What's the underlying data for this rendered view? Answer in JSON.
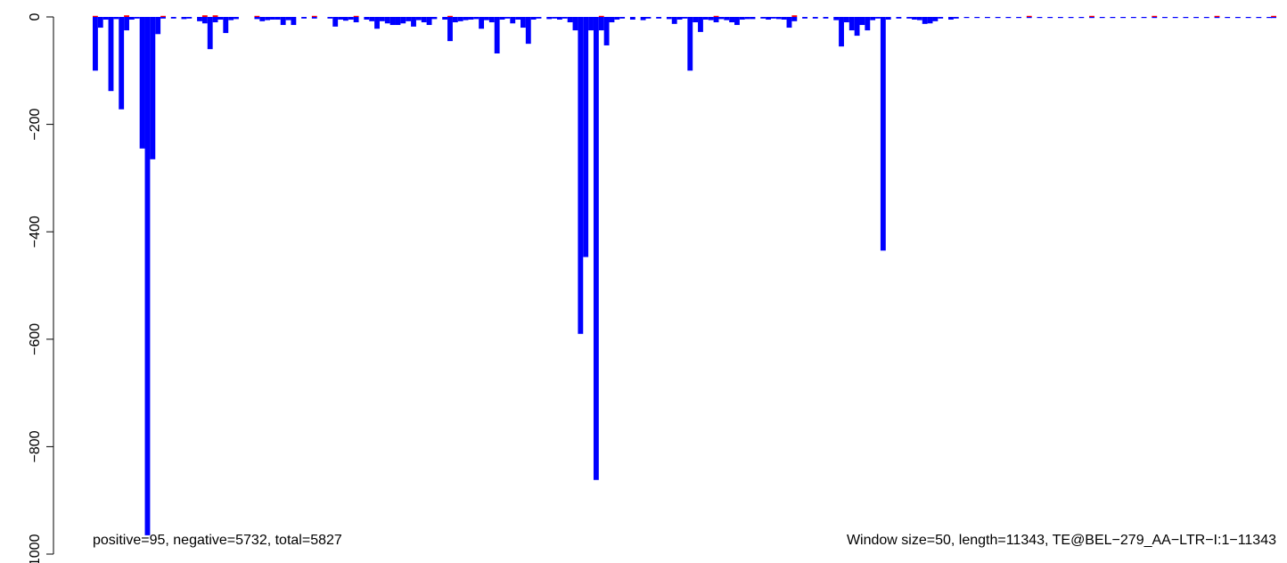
{
  "chart_data": {
    "type": "bar",
    "x_range": [
      0,
      11343
    ],
    "ylim": [
      -1000,
      0
    ],
    "y_ticks": [
      0,
      -200,
      -400,
      -600,
      -800,
      -1000
    ],
    "y_tick_labels": [
      "0",
      "−200",
      "−400",
      "−600",
      "−800",
      "−1000"
    ],
    "series": [
      {
        "color": "#0000ff",
        "points": [
          [
            25,
            -100
          ],
          [
            75,
            -20
          ],
          [
            125,
            -5
          ],
          [
            175,
            -138
          ],
          [
            225,
            -4
          ],
          [
            275,
            -172
          ],
          [
            325,
            -25
          ],
          [
            375,
            -5
          ],
          [
            425,
            -3
          ],
          [
            475,
            -245
          ],
          [
            525,
            -965
          ],
          [
            575,
            -265
          ],
          [
            625,
            -32
          ],
          [
            675,
            -3
          ],
          [
            775,
            -3
          ],
          [
            875,
            -4
          ],
          [
            925,
            -3
          ],
          [
            1025,
            -8
          ],
          [
            1075,
            -12
          ],
          [
            1125,
            -60
          ],
          [
            1175,
            -10
          ],
          [
            1225,
            -5
          ],
          [
            1275,
            -30
          ],
          [
            1325,
            -6
          ],
          [
            1375,
            -4
          ],
          [
            1575,
            -4
          ],
          [
            1625,
            -8
          ],
          [
            1675,
            -6
          ],
          [
            1725,
            -5
          ],
          [
            1775,
            -5
          ],
          [
            1825,
            -15
          ],
          [
            1875,
            -6
          ],
          [
            1925,
            -15
          ],
          [
            2025,
            -3
          ],
          [
            2125,
            -3
          ],
          [
            2275,
            -3
          ],
          [
            2325,
            -18
          ],
          [
            2375,
            -5
          ],
          [
            2425,
            -7
          ],
          [
            2475,
            -5
          ],
          [
            2525,
            -10
          ],
          [
            2625,
            -5
          ],
          [
            2675,
            -8
          ],
          [
            2725,
            -22
          ],
          [
            2775,
            -8
          ],
          [
            2825,
            -12
          ],
          [
            2875,
            -15
          ],
          [
            2925,
            -15
          ],
          [
            2975,
            -12
          ],
          [
            3025,
            -8
          ],
          [
            3075,
            -18
          ],
          [
            3125,
            -6
          ],
          [
            3175,
            -10
          ],
          [
            3225,
            -15
          ],
          [
            3275,
            -4
          ],
          [
            3375,
            -5
          ],
          [
            3425,
            -45
          ],
          [
            3475,
            -10
          ],
          [
            3525,
            -8
          ],
          [
            3575,
            -6
          ],
          [
            3625,
            -5
          ],
          [
            3675,
            -4
          ],
          [
            3725,
            -22
          ],
          [
            3775,
            -6
          ],
          [
            3825,
            -10
          ],
          [
            3875,
            -68
          ],
          [
            3925,
            -5
          ],
          [
            3975,
            -3
          ],
          [
            4025,
            -12
          ],
          [
            4075,
            -5
          ],
          [
            4125,
            -20
          ],
          [
            4175,
            -50
          ],
          [
            4225,
            -5
          ],
          [
            4275,
            -3
          ],
          [
            4375,
            -4
          ],
          [
            4425,
            -3
          ],
          [
            4475,
            -5
          ],
          [
            4525,
            -3
          ],
          [
            4575,
            -10
          ],
          [
            4625,
            -25
          ],
          [
            4675,
            -590
          ],
          [
            4725,
            -447
          ],
          [
            4775,
            -25
          ],
          [
            4825,
            -862
          ],
          [
            4875,
            -25
          ],
          [
            4925,
            -53
          ],
          [
            4975,
            -10
          ],
          [
            5025,
            -5
          ],
          [
            5075,
            -3
          ],
          [
            5175,
            -5
          ],
          [
            5275,
            -6
          ],
          [
            5325,
            -3
          ],
          [
            5425,
            -3
          ],
          [
            5525,
            -4
          ],
          [
            5575,
            -13
          ],
          [
            5625,
            -5
          ],
          [
            5675,
            -3
          ],
          [
            5725,
            -100
          ],
          [
            5775,
            -10
          ],
          [
            5825,
            -28
          ],
          [
            5875,
            -5
          ],
          [
            5925,
            -6
          ],
          [
            5975,
            -10
          ],
          [
            6025,
            -4
          ],
          [
            6075,
            -6
          ],
          [
            6125,
            -10
          ],
          [
            6175,
            -15
          ],
          [
            6225,
            -5
          ],
          [
            6275,
            -4
          ],
          [
            6325,
            -4
          ],
          [
            6425,
            -3
          ],
          [
            6475,
            -5
          ],
          [
            6525,
            -3
          ],
          [
            6575,
            -4
          ],
          [
            6625,
            -5
          ],
          [
            6675,
            -20
          ],
          [
            6725,
            -8
          ],
          [
            6825,
            -3
          ],
          [
            6925,
            -3
          ],
          [
            7025,
            -3
          ],
          [
            7125,
            -6
          ],
          [
            7175,
            -55
          ],
          [
            7225,
            -10
          ],
          [
            7275,
            -25
          ],
          [
            7325,
            -35
          ],
          [
            7375,
            -15
          ],
          [
            7425,
            -25
          ],
          [
            7475,
            -6
          ],
          [
            7525,
            -3
          ],
          [
            7575,
            -435
          ],
          [
            7625,
            -5
          ],
          [
            7725,
            -3
          ],
          [
            7825,
            -3
          ],
          [
            7875,
            -5
          ],
          [
            7925,
            -6
          ],
          [
            7975,
            -13
          ],
          [
            8025,
            -12
          ],
          [
            8075,
            -8
          ],
          [
            8125,
            -3
          ],
          [
            8225,
            -5
          ],
          [
            8275,
            -3
          ],
          [
            8375,
            -2
          ],
          [
            8475,
            -2
          ],
          [
            8575,
            -2
          ],
          [
            8675,
            -2
          ],
          [
            8775,
            -2
          ],
          [
            8875,
            -2
          ],
          [
            8975,
            -2
          ],
          [
            9075,
            -2
          ],
          [
            9175,
            -2
          ],
          [
            9275,
            -2
          ],
          [
            9375,
            -2
          ],
          [
            9475,
            -2
          ],
          [
            9575,
            -2
          ],
          [
            9675,
            -2
          ],
          [
            9775,
            -2
          ],
          [
            9875,
            -2
          ],
          [
            9975,
            -2
          ],
          [
            10075,
            -2
          ],
          [
            10175,
            -2
          ],
          [
            10275,
            -2
          ],
          [
            10375,
            -2
          ],
          [
            10475,
            -2
          ],
          [
            10575,
            -2
          ],
          [
            10675,
            -2
          ],
          [
            10775,
            -2
          ],
          [
            10875,
            -2
          ],
          [
            10975,
            -2
          ],
          [
            11075,
            -2
          ],
          [
            11175,
            -2
          ],
          [
            11275,
            -2
          ],
          [
            11318,
            -2
          ]
        ]
      },
      {
        "color": "#ff0000",
        "points": [
          [
            25,
            2
          ],
          [
            325,
            3
          ],
          [
            675,
            2
          ],
          [
            1075,
            3
          ],
          [
            1175,
            3
          ],
          [
            1575,
            2
          ],
          [
            2125,
            2
          ],
          [
            2525,
            2
          ],
          [
            3425,
            2
          ],
          [
            4875,
            2
          ],
          [
            5975,
            2
          ],
          [
            6725,
            3
          ],
          [
            8975,
            2
          ],
          [
            9575,
            2
          ],
          [
            10175,
            2
          ],
          [
            10775,
            2
          ],
          [
            11318,
            2
          ]
        ]
      }
    ],
    "annotations": {
      "left": "positive=95, negative=5732, total=5827",
      "right": "Window size=50, length=11343, TE@BEL−279_AA−LTR−I:1−11343"
    }
  }
}
